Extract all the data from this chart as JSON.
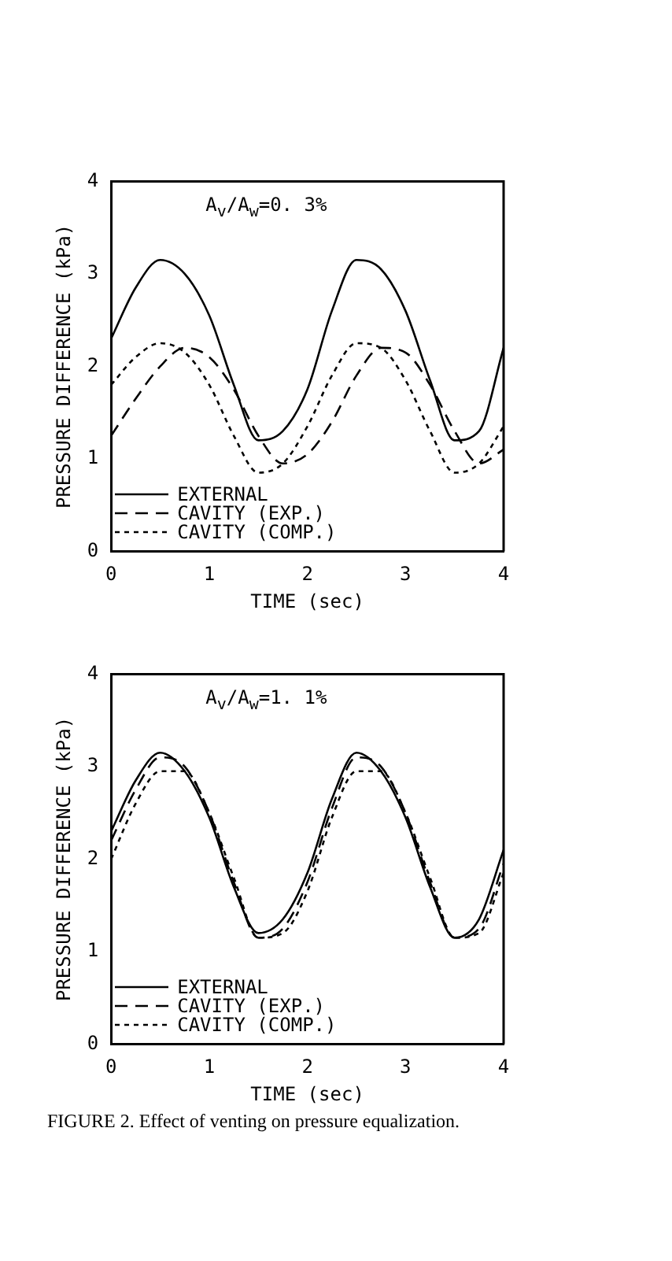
{
  "chart_data": [
    {
      "type": "line",
      "xlabel": "TIME (sec)",
      "ylabel": "PRESSURE DIFFERENCE (kPa)",
      "annotations": [
        {
          "text": "A$_{v}$/A$_{w}$=0. 3%"
        }
      ],
      "x": [
        0,
        0.25,
        0.5,
        0.75,
        1,
        1.25,
        1.5,
        1.75,
        2,
        2.25,
        2.5,
        2.75,
        3,
        3.25,
        3.5,
        3.75,
        4
      ],
      "xlim": [
        0,
        4
      ],
      "ylim": [
        0,
        4
      ],
      "xticks": [
        0,
        1,
        2,
        3,
        4
      ],
      "yticks": [
        0,
        1,
        2,
        3,
        4
      ],
      "grid": false,
      "legend": "bottom left",
      "marker": "none",
      "series": [
        {
          "name": "EXTERNAL",
          "color": "#000000",
          "line_style": "solid",
          "values": [
            2.3,
            2.85,
            3.15,
            3.0,
            2.55,
            1.8,
            1.2,
            1.3,
            1.75,
            2.6,
            3.15,
            3.05,
            2.6,
            1.85,
            1.2,
            1.3,
            2.2
          ]
        },
        {
          "name": "CAVITY (EXP.)",
          "color": "#000000",
          "line_style": "dashed",
          "values": [
            1.25,
            1.65,
            2.0,
            2.2,
            2.1,
            1.75,
            1.25,
            0.95,
            1.05,
            1.4,
            1.9,
            2.2,
            2.15,
            1.8,
            1.3,
            0.95,
            1.1
          ]
        },
        {
          "name": "CAVITY (COMP.)",
          "color": "#000000",
          "line_style": "dotted",
          "values": [
            1.8,
            2.1,
            2.25,
            2.15,
            1.8,
            1.25,
            0.85,
            0.95,
            1.35,
            1.9,
            2.25,
            2.2,
            1.85,
            1.3,
            0.85,
            0.95,
            1.35
          ]
        }
      ]
    },
    {
      "type": "line",
      "xlabel": "TIME (sec)",
      "ylabel": "PRESSURE DIFFERENCE (kPa)",
      "annotations": [
        {
          "text": "A$_{v}$/A$_{w}$=1. 1%"
        },
        "FIGURE 2. Effect of venting on pressure equalization."
      ],
      "x": [
        0,
        0.25,
        0.5,
        0.75,
        1,
        1.25,
        1.5,
        1.75,
        2,
        2.25,
        2.5,
        2.75,
        3,
        3.25,
        3.5,
        3.75,
        4
      ],
      "xlim": [
        0,
        4
      ],
      "ylim": [
        0,
        4
      ],
      "xticks": [
        0,
        1,
        2,
        3,
        4
      ],
      "yticks": [
        0,
        1,
        2,
        3,
        4
      ],
      "grid": false,
      "legend": "bottom left",
      "marker": "none",
      "series": [
        {
          "name": "EXTERNAL",
          "color": "#000000",
          "line_style": "solid",
          "values": [
            2.3,
            2.85,
            3.15,
            2.95,
            2.45,
            1.7,
            1.2,
            1.35,
            1.85,
            2.65,
            3.15,
            2.95,
            2.45,
            1.7,
            1.15,
            1.35,
            2.1
          ]
        },
        {
          "name": "CAVITY (EXP.)",
          "color": "#000000",
          "line_style": "dashed",
          "values": [
            2.2,
            2.75,
            3.1,
            3.0,
            2.5,
            1.75,
            1.15,
            1.25,
            1.75,
            2.55,
            3.1,
            3.0,
            2.5,
            1.75,
            1.15,
            1.25,
            1.95
          ]
        },
        {
          "name": "CAVITY (COMP.)",
          "color": "#000000",
          "line_style": "dotted",
          "values": [
            2.0,
            2.6,
            2.95,
            2.95,
            2.5,
            1.8,
            1.15,
            1.2,
            1.65,
            2.45,
            2.95,
            2.95,
            2.5,
            1.8,
            1.15,
            1.2,
            1.85
          ]
        }
      ]
    }
  ]
}
